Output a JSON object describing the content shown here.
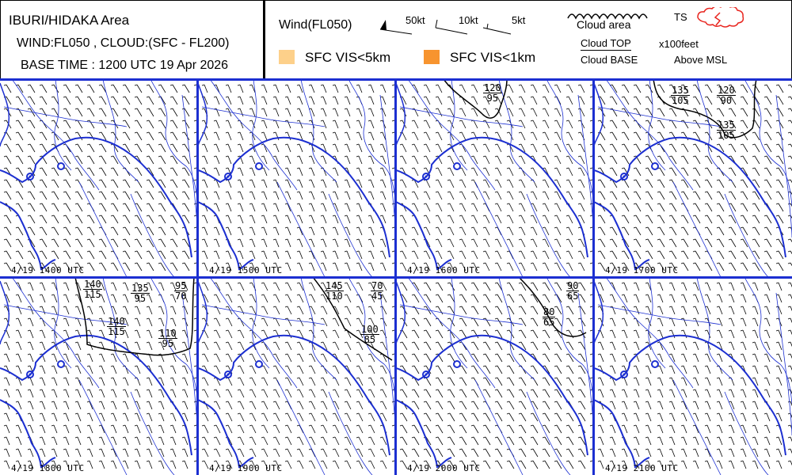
{
  "header": {
    "area": "IBURI/HIDAKA Area",
    "params": "WIND:FL050 , CLOUD:(SFC - FL200)",
    "base_time": "BASE TIME : 1200 UTC 19 Apr 2026"
  },
  "legend": {
    "wind_title": "Wind(FL050)",
    "wind_50": "50kt",
    "wind_10": "10kt",
    "wind_5": "5kt",
    "cloud_area": "Cloud area",
    "ts": "TS",
    "cloud_top": "Cloud TOP",
    "cloud_base": "Cloud BASE",
    "unit": "x100feet",
    "msl": "Above MSL",
    "vis5": "SFC VIS<5km",
    "vis1": "SFC VIS<1km",
    "colors": {
      "vis5": "#fdd08a",
      "vis1": "#f7942f",
      "ts": "#e8251f",
      "map": "#1c2fd1",
      "grid": "#1c2fd1"
    }
  },
  "panels": [
    {
      "time": "4/19 1400 UTC",
      "clouds": []
    },
    {
      "time": "4/19 1500 UTC",
      "clouds": []
    },
    {
      "time": "4/19 1600 UTC",
      "clouds": [
        {
          "top": "120",
          "base": "95"
        }
      ]
    },
    {
      "time": "4/19 1700 UTC",
      "clouds": [
        {
          "top": "135",
          "base": "105"
        },
        {
          "top": "120",
          "base": "90"
        },
        {
          "top": "135",
          "base": "105"
        }
      ]
    },
    {
      "time": "4/19 1800 UTC",
      "clouds": [
        {
          "top": "140",
          "base": "115"
        },
        {
          "top": "135",
          "base": "95"
        },
        {
          "top": "95",
          "base": "70"
        },
        {
          "top": "140",
          "base": "115"
        },
        {
          "top": "110",
          "base": "95"
        }
      ]
    },
    {
      "time": "4/19 1900 UTC",
      "clouds": [
        {
          "top": "145",
          "base": "110"
        },
        {
          "top": "70",
          "base": "45"
        },
        {
          "top": "100",
          "base": "85"
        }
      ]
    },
    {
      "time": "4/19 2000 UTC",
      "clouds": [
        {
          "top": "90",
          "base": "65"
        },
        {
          "top": "80",
          "base": "65"
        }
      ]
    },
    {
      "time": "4/19 2100 UTC",
      "clouds": []
    }
  ]
}
